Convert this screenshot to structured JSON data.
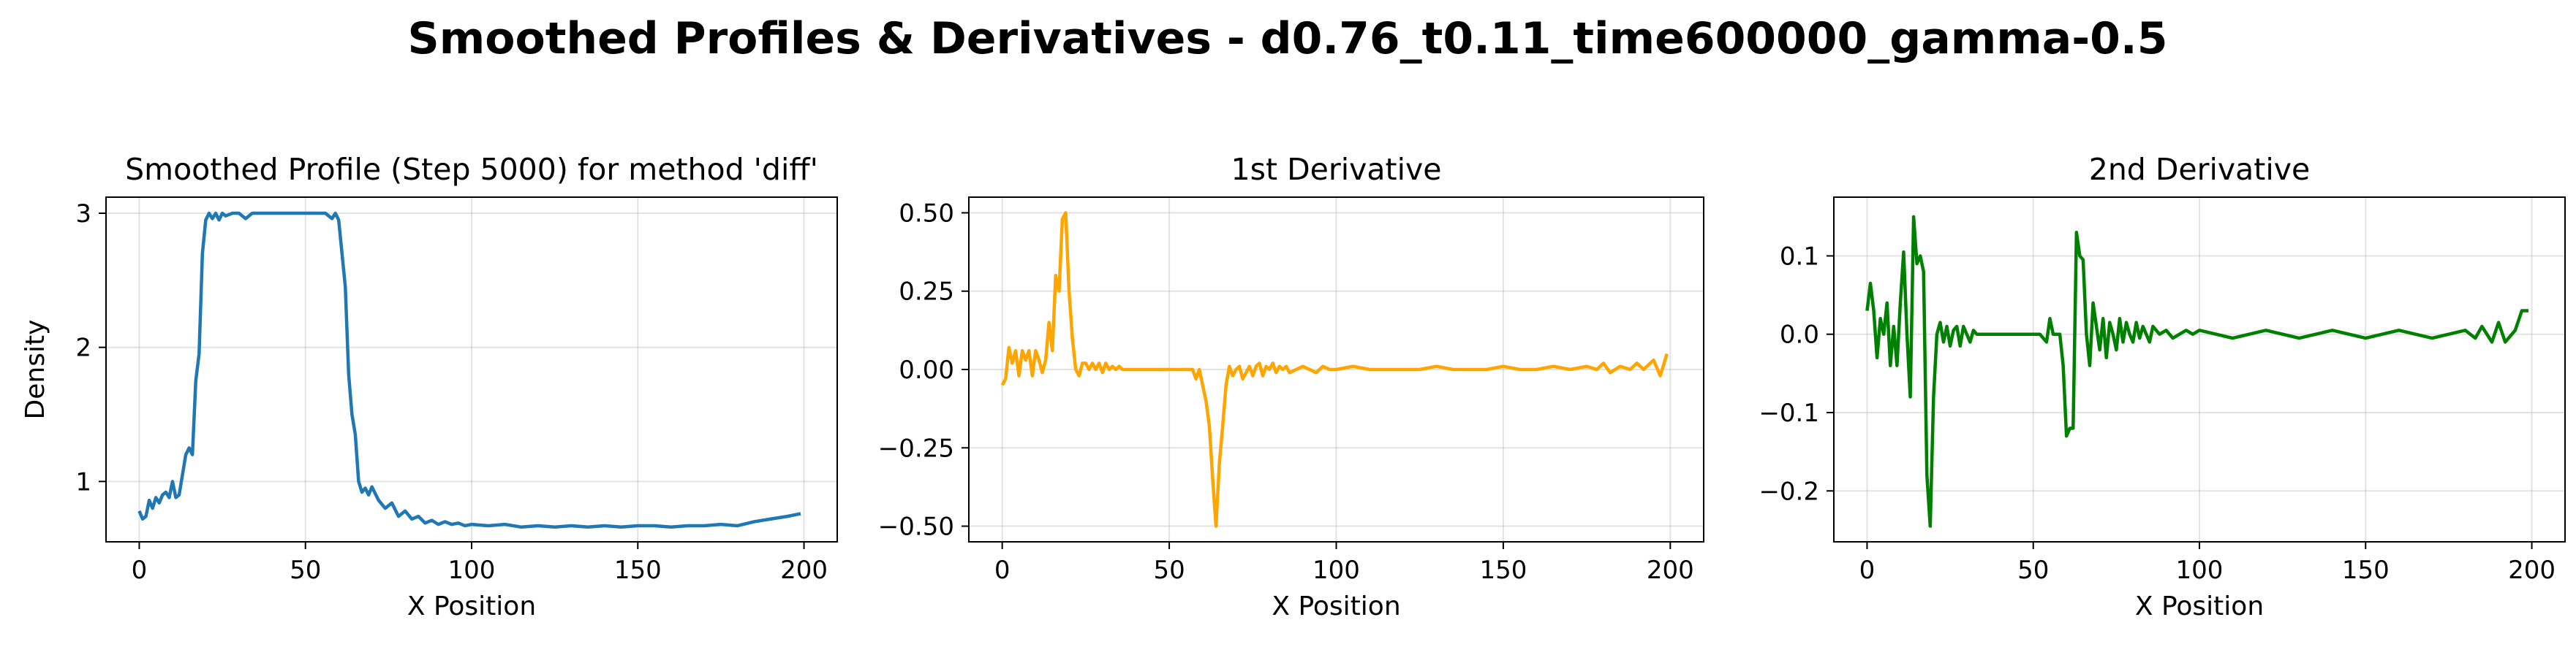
{
  "figure": {
    "suptitle": "Smoothed Profiles & Derivatives - d0.76_t0.11_time600000_gamma-0.5"
  },
  "chart_data": [
    {
      "type": "line",
      "title": "Smoothed Profile (Step 5000) for method 'diff'",
      "xlabel": "X Position",
      "ylabel": "Density",
      "xlim": [
        -10,
        210
      ],
      "ylim": [
        0.55,
        3.12
      ],
      "xticks": [
        0,
        50,
        100,
        150,
        200
      ],
      "yticks": [
        1,
        2,
        3
      ],
      "ytick_labels": [
        "1",
        "2",
        "3"
      ],
      "grid": true,
      "color": "#1f77b4",
      "series": [
        {
          "x": [
            0,
            1,
            2,
            3,
            4,
            5,
            6,
            7,
            8,
            9,
            10,
            11,
            12,
            13,
            14,
            15,
            16,
            17,
            18,
            19,
            20,
            21,
            22,
            23,
            24,
            25,
            26,
            28,
            30,
            32,
            34,
            36,
            38,
            40,
            42,
            44,
            46,
            48,
            50,
            52,
            54,
            56,
            58,
            59,
            60,
            61,
            62,
            63,
            64,
            65,
            66,
            67,
            68,
            69,
            70,
            72,
            74,
            76,
            78,
            80,
            82,
            84,
            86,
            88,
            90,
            92,
            94,
            96,
            98,
            100,
            105,
            110,
            115,
            120,
            125,
            130,
            135,
            140,
            145,
            150,
            155,
            160,
            165,
            170,
            175,
            180,
            185,
            190,
            195,
            199
          ],
          "y": [
            0.78,
            0.72,
            0.74,
            0.86,
            0.8,
            0.88,
            0.84,
            0.9,
            0.92,
            0.88,
            1.0,
            0.88,
            0.9,
            1.05,
            1.2,
            1.25,
            1.2,
            1.75,
            1.95,
            2.7,
            2.95,
            3.0,
            2.96,
            3.0,
            2.95,
            3.0,
            2.98,
            3.0,
            3.0,
            2.96,
            3.0,
            3.0,
            3.0,
            3.0,
            3.0,
            3.0,
            3.0,
            3.0,
            3.0,
            3.0,
            3.0,
            3.0,
            2.96,
            3.0,
            2.95,
            2.7,
            2.45,
            1.8,
            1.5,
            1.35,
            1.0,
            0.92,
            0.95,
            0.9,
            0.96,
            0.86,
            0.8,
            0.84,
            0.74,
            0.78,
            0.72,
            0.74,
            0.69,
            0.71,
            0.68,
            0.7,
            0.68,
            0.69,
            0.67,
            0.68,
            0.67,
            0.68,
            0.66,
            0.67,
            0.66,
            0.67,
            0.66,
            0.67,
            0.66,
            0.67,
            0.67,
            0.66,
            0.67,
            0.67,
            0.68,
            0.67,
            0.7,
            0.72,
            0.74,
            0.76
          ]
        }
      ]
    },
    {
      "type": "line",
      "title": "1st Derivative",
      "xlabel": "X Position",
      "ylabel": "",
      "xlim": [
        -10,
        210
      ],
      "ylim": [
        -0.55,
        0.55
      ],
      "xticks": [
        0,
        50,
        100,
        150,
        200
      ],
      "yticks": [
        -0.5,
        -0.25,
        0.0,
        0.25,
        0.5
      ],
      "ytick_labels": [
        "−0.50",
        "−0.25",
        "0.00",
        "0.25",
        "0.50"
      ],
      "grid": true,
      "color": "#ffa500",
      "series": [
        {
          "x": [
            0,
            1,
            2,
            3,
            4,
            5,
            6,
            7,
            8,
            9,
            10,
            11,
            12,
            13,
            14,
            15,
            16,
            17,
            18,
            19,
            20,
            21,
            22,
            23,
            24,
            25,
            26,
            27,
            28,
            29,
            30,
            31,
            32,
            33,
            34,
            35,
            36,
            38,
            40,
            45,
            50,
            55,
            56,
            57,
            58,
            59,
            60,
            61,
            62,
            63,
            64,
            65,
            66,
            67,
            68,
            69,
            70,
            71,
            72,
            73,
            74,
            75,
            76,
            77,
            78,
            79,
            80,
            81,
            82,
            83,
            84,
            85,
            86,
            88,
            90,
            92,
            94,
            96,
            98,
            100,
            105,
            110,
            115,
            120,
            125,
            130,
            135,
            140,
            145,
            150,
            155,
            160,
            165,
            170,
            175,
            178,
            180,
            182,
            185,
            188,
            190,
            192,
            195,
            197,
            199
          ],
          "y": [
            -0.05,
            -0.03,
            0.07,
            0.02,
            0.06,
            -0.02,
            0.06,
            0.03,
            0.06,
            -0.02,
            0.06,
            0.03,
            -0.01,
            0.03,
            0.15,
            0.06,
            0.3,
            0.25,
            0.48,
            0.5,
            0.25,
            0.1,
            0.0,
            -0.02,
            0.02,
            0.02,
            0.0,
            0.02,
            0.0,
            0.02,
            -0.01,
            0.02,
            0.0,
            0.01,
            0.0,
            0.01,
            0.0,
            0.0,
            0.0,
            0.0,
            0.0,
            0.0,
            0.0,
            0.0,
            -0.03,
            0.0,
            -0.05,
            -0.1,
            -0.18,
            -0.35,
            -0.5,
            -0.3,
            -0.18,
            -0.05,
            0.01,
            -0.02,
            0.0,
            0.01,
            -0.03,
            -0.01,
            0.01,
            -0.02,
            0.01,
            0.02,
            -0.02,
            0.01,
            0.0,
            0.02,
            -0.01,
            0.01,
            0.0,
            0.01,
            -0.01,
            0.0,
            0.01,
            0.0,
            -0.01,
            0.01,
            0.0,
            0.0,
            0.01,
            0.0,
            0.0,
            0.0,
            0.0,
            0.01,
            0.0,
            0.0,
            0.0,
            0.01,
            0.0,
            0.0,
            0.01,
            0.0,
            0.01,
            0.0,
            0.02,
            -0.01,
            0.01,
            0.0,
            0.02,
            0.0,
            0.03,
            -0.02,
            0.05
          ]
        }
      ]
    },
    {
      "type": "line",
      "title": "2nd Derivative",
      "xlabel": "X Position",
      "ylabel": "",
      "xlim": [
        -10,
        210
      ],
      "ylim": [
        -0.265,
        0.175
      ],
      "xticks": [
        0,
        50,
        100,
        150,
        200
      ],
      "yticks": [
        -0.2,
        -0.1,
        0.0,
        0.1
      ],
      "ytick_labels": [
        "−0.2",
        "−0.1",
        "0.0",
        "0.1"
      ],
      "grid": true,
      "color": "#008000",
      "series": [
        {
          "x": [
            0,
            1,
            2,
            3,
            4,
            5,
            6,
            7,
            8,
            9,
            10,
            11,
            12,
            13,
            14,
            15,
            16,
            17,
            18,
            19,
            20,
            21,
            22,
            23,
            24,
            25,
            26,
            27,
            28,
            29,
            30,
            31,
            32,
            33,
            34,
            35,
            36,
            38,
            40,
            45,
            50,
            52,
            54,
            55,
            56,
            57,
            58,
            59,
            60,
            61,
            62,
            63,
            64,
            65,
            66,
            67,
            68,
            69,
            70,
            71,
            72,
            73,
            74,
            75,
            76,
            77,
            78,
            79,
            80,
            81,
            82,
            83,
            84,
            85,
            86,
            88,
            90,
            92,
            94,
            96,
            98,
            100,
            105,
            110,
            115,
            120,
            125,
            130,
            135,
            140,
            145,
            150,
            155,
            160,
            165,
            170,
            175,
            180,
            183,
            185,
            188,
            190,
            192,
            195,
            197,
            199
          ],
          "y": [
            0.03,
            0.065,
            0.03,
            -0.03,
            0.02,
            0.0,
            0.04,
            -0.04,
            0.01,
            -0.04,
            0.04,
            0.105,
            0.0,
            -0.08,
            0.15,
            0.09,
            0.1,
            0.08,
            -0.18,
            -0.245,
            -0.08,
            0.0,
            0.015,
            -0.01,
            0.01,
            -0.015,
            0.005,
            0.01,
            -0.015,
            0.01,
            0.0,
            -0.01,
            0.005,
            0.0,
            0.0,
            0.0,
            0.0,
            0.0,
            0.0,
            0.0,
            0.0,
            0.0,
            -0.01,
            0.02,
            0.0,
            0.0,
            0.0,
            -0.04,
            -0.13,
            -0.12,
            -0.12,
            0.13,
            0.1,
            0.095,
            0.0,
            -0.04,
            0.04,
            0.01,
            -0.02,
            0.02,
            -0.03,
            0.015,
            0.0,
            -0.02,
            0.02,
            -0.01,
            0.015,
            0.0,
            -0.01,
            0.015,
            -0.005,
            0.01,
            0.0,
            -0.01,
            0.01,
            0.0,
            0.005,
            -0.005,
            0.0,
            0.005,
            0.0,
            0.005,
            0.0,
            -0.005,
            0.0,
            0.005,
            0.0,
            -0.005,
            0.0,
            0.005,
            0.0,
            -0.005,
            0.0,
            0.005,
            0.0,
            -0.005,
            0.0,
            0.005,
            -0.005,
            0.01,
            -0.01,
            0.015,
            -0.01,
            0.005,
            0.03,
            0.03
          ]
        }
      ]
    }
  ]
}
